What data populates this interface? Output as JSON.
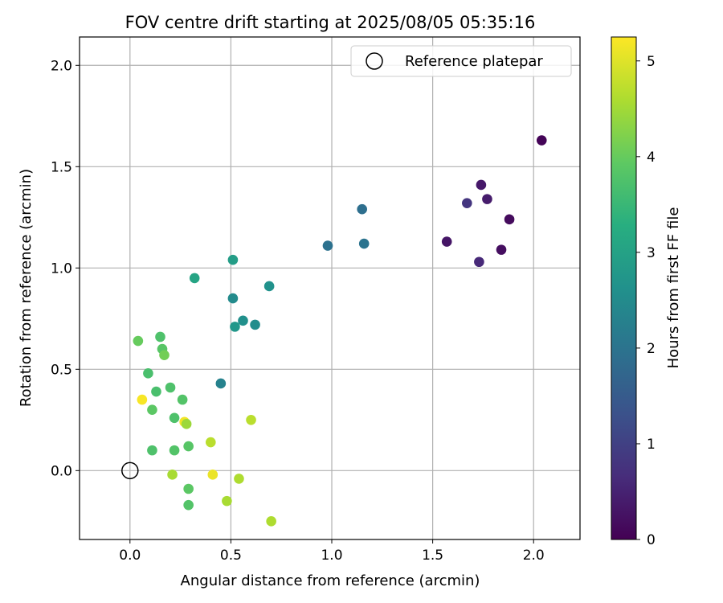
{
  "chart_data": {
    "type": "scatter",
    "title": "FOV centre drift starting at 2025/08/05 05:35:16",
    "xlabel": "Angular distance from reference (arcmin)",
    "ylabel": "Rotation from reference (arcmin)",
    "xlim": [
      -0.25,
      2.23
    ],
    "ylim": [
      -0.34,
      2.14
    ],
    "xticks": [
      0.0,
      0.5,
      1.0,
      1.5,
      2.0
    ],
    "yticks": [
      0.0,
      0.5,
      1.0,
      1.5,
      2.0
    ],
    "grid": true,
    "legend": {
      "position": "top-right",
      "entries": [
        "Reference platepar"
      ]
    },
    "reference_point": {
      "x": 0.0,
      "y": 0.0
    },
    "colorbar": {
      "label": "Hours from first FF file",
      "colormap": "viridis",
      "range": [
        0,
        5.25
      ],
      "ticks": [
        0,
        1,
        2,
        3,
        4,
        5
      ]
    },
    "points": [
      {
        "x": 2.04,
        "y": 1.63,
        "c": 0.05
      },
      {
        "x": 1.88,
        "y": 1.24,
        "c": 0.15
      },
      {
        "x": 1.84,
        "y": 1.09,
        "c": 0.2
      },
      {
        "x": 1.74,
        "y": 1.41,
        "c": 0.35
      },
      {
        "x": 1.77,
        "y": 1.34,
        "c": 0.4
      },
      {
        "x": 1.67,
        "y": 1.32,
        "c": 0.8
      },
      {
        "x": 1.57,
        "y": 1.13,
        "c": 0.3
      },
      {
        "x": 1.73,
        "y": 1.03,
        "c": 0.6
      },
      {
        "x": 1.15,
        "y": 1.29,
        "c": 1.9
      },
      {
        "x": 0.98,
        "y": 1.11,
        "c": 1.95
      },
      {
        "x": 1.16,
        "y": 1.12,
        "c": 2.0
      },
      {
        "x": 0.69,
        "y": 0.91,
        "c": 2.65
      },
      {
        "x": 0.51,
        "y": 1.04,
        "c": 2.9
      },
      {
        "x": 0.32,
        "y": 0.95,
        "c": 3.05
      },
      {
        "x": 0.51,
        "y": 0.85,
        "c": 2.5
      },
      {
        "x": 0.56,
        "y": 0.74,
        "c": 2.6
      },
      {
        "x": 0.52,
        "y": 0.71,
        "c": 2.75
      },
      {
        "x": 0.62,
        "y": 0.72,
        "c": 2.55
      },
      {
        "x": 0.45,
        "y": 0.43,
        "c": 2.3
      },
      {
        "x": 0.04,
        "y": 0.64,
        "c": 4.0
      },
      {
        "x": 0.15,
        "y": 0.66,
        "c": 3.75
      },
      {
        "x": 0.16,
        "y": 0.6,
        "c": 3.85
      },
      {
        "x": 0.17,
        "y": 0.57,
        "c": 4.1
      },
      {
        "x": 0.09,
        "y": 0.48,
        "c": 3.7
      },
      {
        "x": 0.13,
        "y": 0.39,
        "c": 3.7
      },
      {
        "x": 0.2,
        "y": 0.41,
        "c": 3.75
      },
      {
        "x": 0.06,
        "y": 0.35,
        "c": 5.2
      },
      {
        "x": 0.11,
        "y": 0.3,
        "c": 3.9
      },
      {
        "x": 0.26,
        "y": 0.35,
        "c": 3.8
      },
      {
        "x": 0.22,
        "y": 0.26,
        "c": 3.75
      },
      {
        "x": 0.27,
        "y": 0.24,
        "c": 5.15
      },
      {
        "x": 0.28,
        "y": 0.23,
        "c": 4.45
      },
      {
        "x": 0.6,
        "y": 0.25,
        "c": 4.7
      },
      {
        "x": 0.4,
        "y": 0.14,
        "c": 4.7
      },
      {
        "x": 0.29,
        "y": 0.12,
        "c": 3.85
      },
      {
        "x": 0.11,
        "y": 0.1,
        "c": 3.75
      },
      {
        "x": 0.22,
        "y": 0.1,
        "c": 3.8
      },
      {
        "x": 0.21,
        "y": -0.02,
        "c": 4.55
      },
      {
        "x": 0.41,
        "y": -0.02,
        "c": 5.1
      },
      {
        "x": 0.54,
        "y": -0.04,
        "c": 4.6
      },
      {
        "x": 0.29,
        "y": -0.09,
        "c": 3.9
      },
      {
        "x": 0.48,
        "y": -0.15,
        "c": 4.55
      },
      {
        "x": 0.29,
        "y": -0.17,
        "c": 3.8
      },
      {
        "x": 0.7,
        "y": -0.25,
        "c": 4.6
      }
    ]
  }
}
